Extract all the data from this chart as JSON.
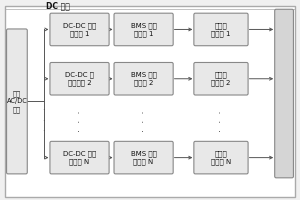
{
  "bg_outer": "#f0f0f0",
  "bg_inner": "#ffffff",
  "box_fill": "#e8e8e8",
  "box_edge": "#888888",
  "line_color": "#555555",
  "text_color": "#111111",
  "title_top": "DC 总线",
  "left_box_text": "三\n相\nA\nC\n/\nD\nC\n电\n源",
  "right_strip_fill": "#d0d0d0",
  "rows": [
    {
      "col1": "DC-DC 恒流\n源模块 1",
      "col2": "BMS 及锂\n电池组 1",
      "col3": "隔离升\n压模块 1"
    },
    {
      "col1": "DC-DC 恒\n流源模块 2",
      "col2": "BMS 及锂\n电池组 2",
      "col3": "隔离升\n压模块 2"
    },
    {
      "col1": "DC-DC 恒流\n源模块 N",
      "col2": "BMS 及锂\n电池组 N",
      "col3": "隔离升\n压模块 N"
    }
  ],
  "fig_width": 3.0,
  "fig_height": 2.0,
  "dpi": 100
}
